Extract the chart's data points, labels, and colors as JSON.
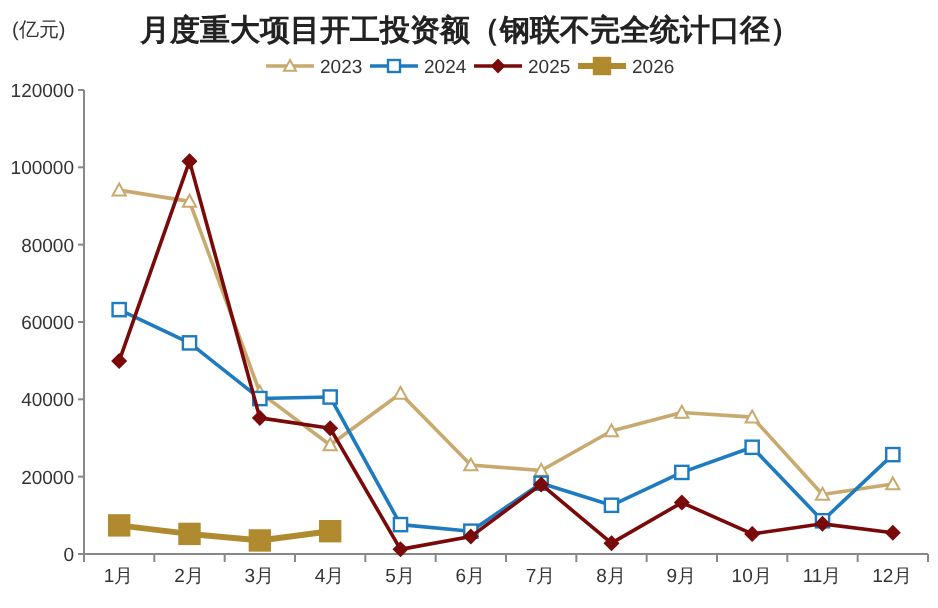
{
  "chart_data": {
    "type": "line",
    "title": "月度重大项目开工投资额（钢联不完全统计口径）",
    "ylabel": "(亿元)",
    "categories": [
      "1月",
      "2月",
      "3月",
      "4月",
      "5月",
      "6月",
      "7月",
      "8月",
      "9月",
      "10月",
      "11月",
      "12月"
    ],
    "series": [
      {
        "name": "2023",
        "color": "#c8a96e",
        "marker": "triangle",
        "values": [
          94100,
          91200,
          41800,
          28200,
          41500,
          23000,
          21600,
          31800,
          36600,
          35400,
          15400,
          18100
        ]
      },
      {
        "name": "2024",
        "color": "#1f7bc0",
        "marker": "square",
        "values": [
          63200,
          54600,
          40200,
          40600,
          7600,
          5900,
          18300,
          12600,
          21100,
          27600,
          8600,
          25700
        ]
      },
      {
        "name": "2025",
        "color": "#7a0a0a",
        "marker": "diamond",
        "values": [
          49900,
          101600,
          35200,
          32500,
          1200,
          4500,
          18000,
          2800,
          13300,
          5200,
          7800,
          5500
        ]
      },
      {
        "name": "2026",
        "color": "#b08a2e",
        "marker": "square",
        "values": [
          7400,
          5200,
          3500,
          5900,
          null,
          null,
          null,
          null,
          null,
          null,
          null,
          null
        ]
      }
    ],
    "ylim": [
      0,
      120000
    ],
    "yticks": [
      0,
      20000,
      40000,
      60000,
      80000,
      100000,
      120000
    ],
    "grid": false,
    "legend": "top"
  }
}
